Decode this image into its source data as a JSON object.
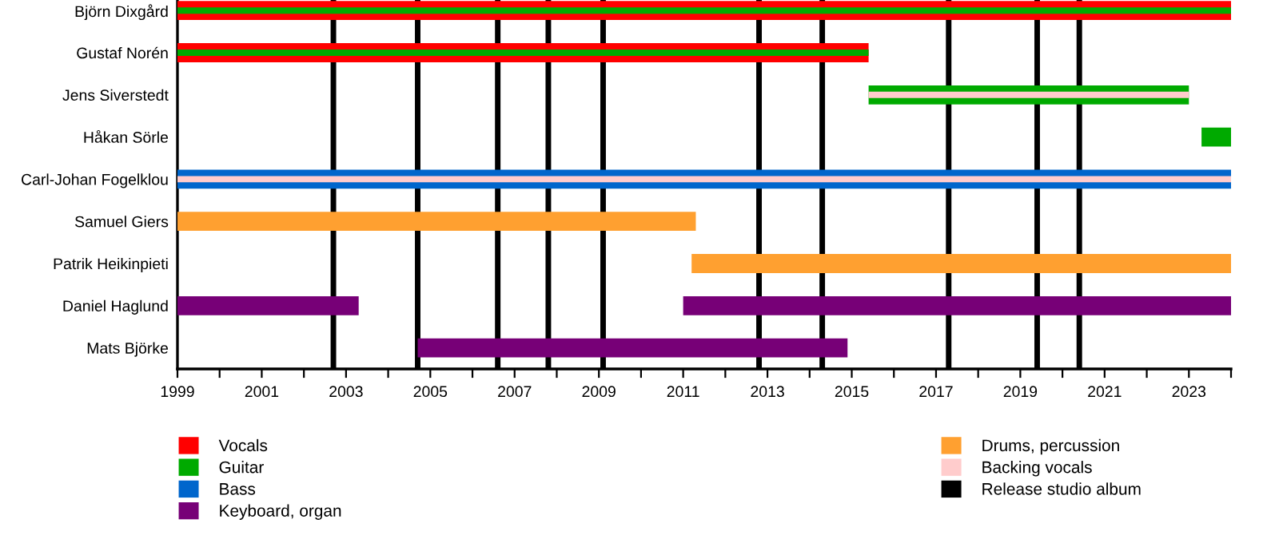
{
  "chart_data": {
    "type": "bar",
    "orientation": "horizontal",
    "categories": [
      "Björn Dixgård",
      "Gustaf Norén",
      "Jens Siverstedt",
      "Håkan Sörle",
      "Carl-Johan Fogelklou",
      "Samuel Giers",
      "Patrik Heikinpieti",
      "Daniel Haglund",
      "Mats Björke"
    ],
    "series": [
      {
        "name": "Vocals",
        "color": "#ff0000",
        "base": [
          1999,
          1999,
          null,
          null,
          null,
          null,
          null,
          null,
          null
        ],
        "values": [
          25,
          16.4,
          null,
          null,
          null,
          null,
          null,
          null,
          null
        ]
      },
      {
        "name": "Guitar",
        "color": "#00aa00",
        "base": [
          1999,
          1999,
          2015.4,
          2023.3,
          null,
          null,
          null,
          null,
          null
        ],
        "values": [
          25,
          16.4,
          7.6,
          0.7,
          null,
          null,
          null,
          null,
          null
        ]
      },
      {
        "name": "Bass",
        "color": "#0066cc",
        "base": [
          null,
          null,
          null,
          null,
          1999,
          null,
          null,
          null,
          null
        ],
        "values": [
          null,
          null,
          null,
          null,
          25,
          null,
          null,
          null,
          null
        ]
      },
      {
        "name": "Keyboard, organ",
        "color": "#770077",
        "base": [
          null,
          null,
          null,
          null,
          null,
          null,
          null,
          1999,
          2004.7
        ],
        "values": [
          null,
          null,
          null,
          null,
          null,
          null,
          null,
          4.3,
          10.2
        ]
      },
      {
        "name": "Drums, percussion",
        "color": "#ffa030",
        "base": [
          null,
          null,
          null,
          null,
          null,
          1999,
          2011.2,
          null,
          null
        ],
        "values": [
          null,
          null,
          null,
          null,
          null,
          12.3,
          12.8,
          null,
          null
        ]
      },
      {
        "color": "#770077",
        "base": [
          null,
          null,
          null,
          null,
          null,
          null,
          null,
          2011.0,
          null
        ],
        "values": [
          null,
          null,
          null,
          null,
          null,
          null,
          null,
          13,
          null
        ]
      },
      {
        "name": "Backing vocals",
        "color": "#ffcccc",
        "base": [
          null,
          null,
          2015.4,
          null,
          1999,
          null,
          null,
          null,
          null
        ],
        "values": [
          null,
          null,
          7.6,
          null,
          25,
          null,
          null,
          null,
          null
        ]
      }
    ],
    "ref_lines": [
      {
        "axis": "x",
        "value": 2002.7,
        "label": "Release studio album",
        "color": "#000000"
      },
      {
        "axis": "x",
        "value": 2004.7,
        "color": "#000000"
      },
      {
        "axis": "x",
        "value": 2006.6,
        "color": "#000000"
      },
      {
        "axis": "x",
        "value": 2007.8,
        "color": "#000000"
      },
      {
        "axis": "x",
        "value": 2009.1,
        "color": "#000000"
      },
      {
        "axis": "x",
        "value": 2012.8,
        "color": "#000000"
      },
      {
        "axis": "x",
        "value": 2014.3,
        "color": "#000000"
      },
      {
        "axis": "x",
        "value": 2017.3,
        "color": "#000000"
      },
      {
        "axis": "x",
        "value": 2019.4,
        "color": "#000000"
      },
      {
        "axis": "x",
        "value": 2020.4,
        "color": "#000000"
      }
    ],
    "xlim": [
      1999,
      2024
    ],
    "xticks": [
      1999,
      {
        "value": 2000,
        "label": null
      },
      2001,
      {
        "value": 2002,
        "label": null
      },
      2003,
      {
        "value": 2004,
        "label": null
      },
      2005,
      {
        "value": 2006,
        "label": null
      },
      2007,
      {
        "value": 2008,
        "label": null
      },
      2009,
      {
        "value": 2010,
        "label": null
      },
      2011,
      {
        "value": 2012,
        "label": null
      },
      2013,
      {
        "value": 2014,
        "label": null
      },
      2015,
      {
        "value": 2016,
        "label": null
      },
      2017,
      {
        "value": 2018,
        "label": null
      },
      2019,
      {
        "value": 2020,
        "label": null
      },
      2021,
      {
        "value": 2022,
        "label": null
      },
      2023,
      {
        "value": 2024,
        "label": null
      }
    ],
    "grid": false,
    "legend": "bottom"
  }
}
